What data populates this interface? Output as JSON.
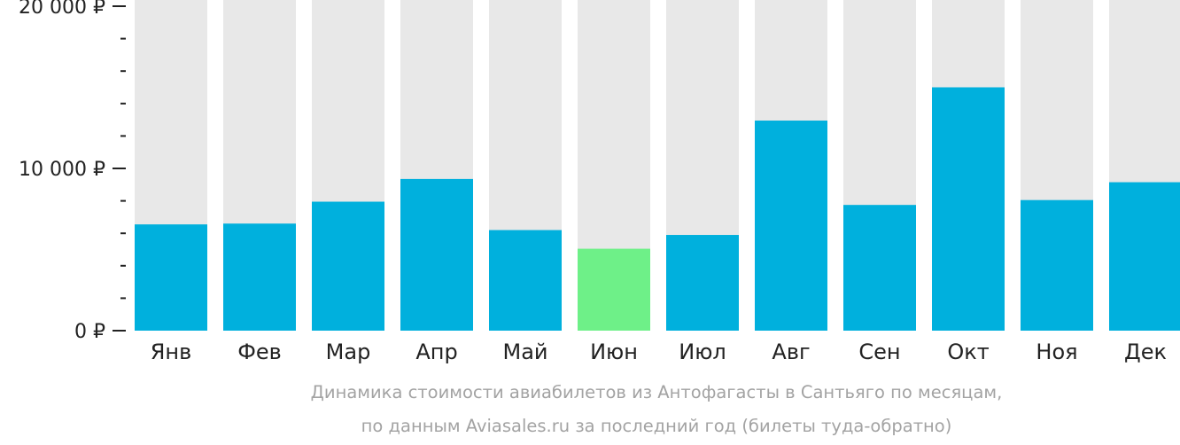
{
  "chart_data": {
    "type": "bar",
    "categories": [
      "Янв",
      "Фев",
      "Мар",
      "Апр",
      "Май",
      "Июн",
      "Июл",
      "Авг",
      "Сен",
      "Окт",
      "Ноя",
      "Дек"
    ],
    "values": [
      6550,
      6600,
      7950,
      9350,
      6200,
      5050,
      5900,
      12950,
      7750,
      15000,
      8050,
      9150
    ],
    "ylim": [
      0,
      20000
    ],
    "yticks": [
      {
        "value": 0,
        "label": "0 ₽"
      },
      {
        "value": 10000,
        "label": "10 000 ₽"
      },
      {
        "value": 20000,
        "label": "20 000 ₽"
      }
    ],
    "minor_tick_step": 2000,
    "highlight_index": 5,
    "colors": {
      "bar": "#00b0dd",
      "highlight": "#6ef088",
      "track": "#e8e8e8",
      "axis": "#222222"
    },
    "grid": false,
    "legend": "none"
  },
  "caption": {
    "line1": "Динамика стоимости авиабилетов из Антофагасты в Сантьяго по месяцам,",
    "line2": "по данным Aviasales.ru за последний год (билеты туда-обратно)"
  }
}
